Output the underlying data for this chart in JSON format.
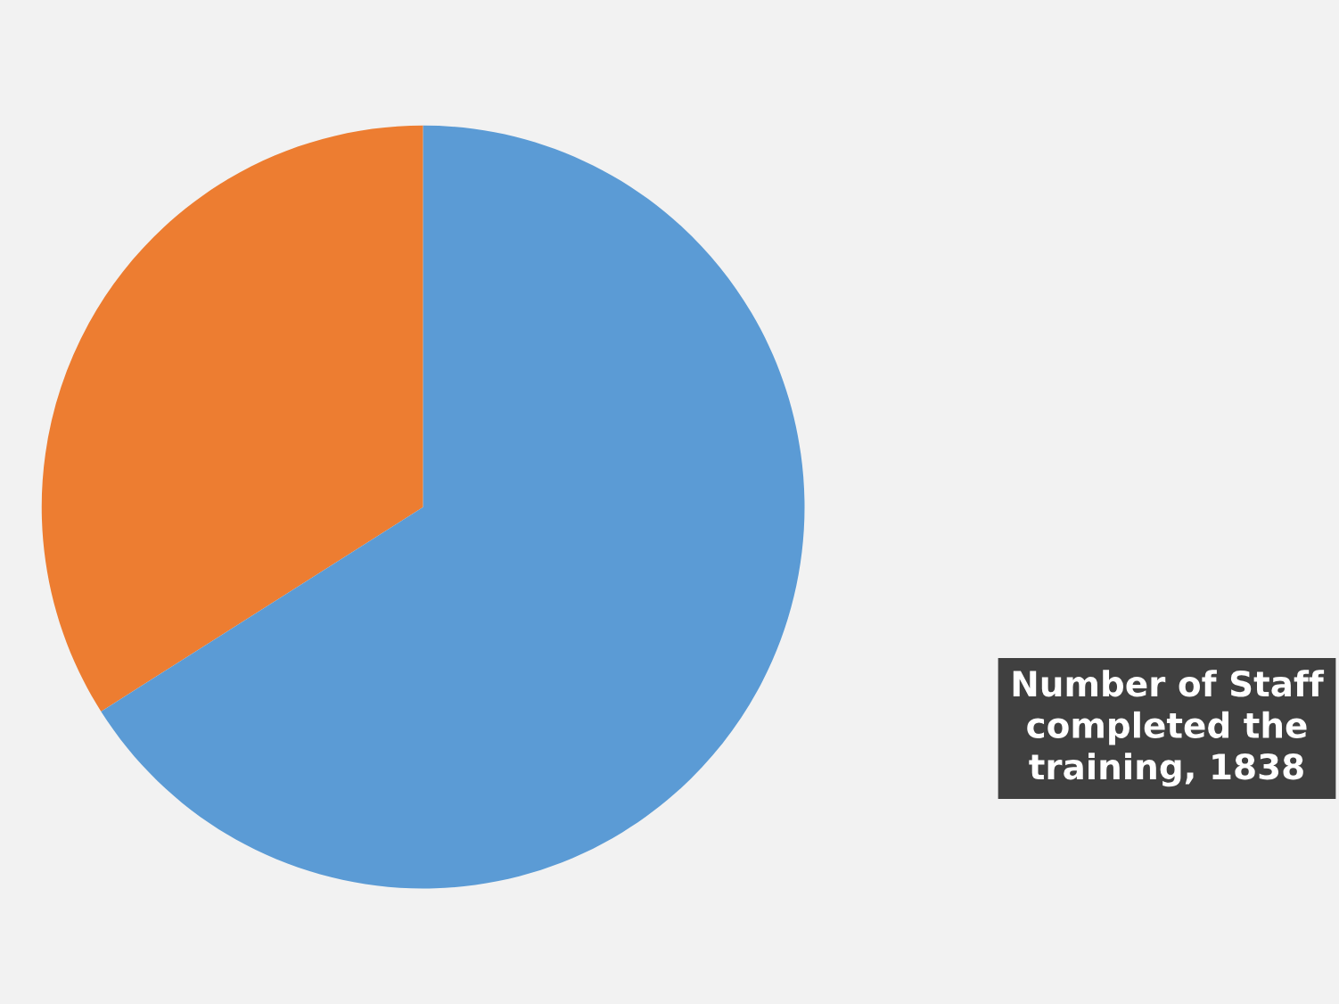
{
  "chart_data": {
    "type": "pie",
    "categories": [
      null,
      "Number of Staff completed the training, 1838"
    ],
    "values": [
      34,
      66
    ],
    "colors": [
      "#ed7d31",
      "#5b9bd5"
    ]
  }
}
